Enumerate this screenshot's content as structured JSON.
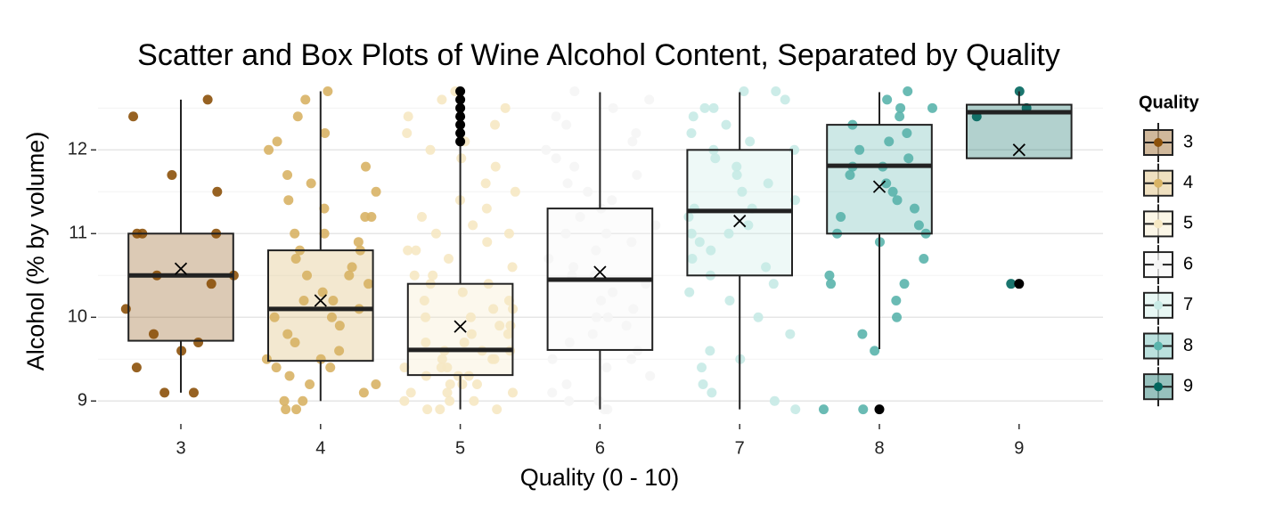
{
  "chart_data": {
    "type": "box",
    "title": "Scatter and Box Plots of Wine Alcohol Content, Separated by Quality",
    "x_title": "Quality (0 - 10)",
    "y_title": "Alcohol (% by volume)",
    "legend_title": "Quality",
    "categories": [
      "3",
      "4",
      "5",
      "6",
      "7",
      "8",
      "9"
    ],
    "ylim": [
      8.79,
      12.78
    ],
    "yticks": [
      9,
      10,
      11,
      12
    ],
    "minor_yticks": [
      9.5,
      10.5,
      11.5,
      12.5
    ],
    "grid": true,
    "legend": "right",
    "boxes": [
      {
        "color": "#8c510a",
        "q1": 9.72,
        "median": 10.5,
        "q3": 11.0,
        "whisker_low": 9.1,
        "whisker_high": 12.6,
        "mean": 10.58,
        "outliers": [],
        "points": [
          12.6,
          12.4,
          11.7,
          11.5,
          11.0,
          11.0,
          11.0,
          10.5,
          10.5,
          10.4,
          10.1,
          9.8,
          9.7,
          9.6,
          9.4,
          9.1,
          9.1
        ]
      },
      {
        "color": "#d8b365",
        "q1": 9.48,
        "median": 10.1,
        "q3": 10.8,
        "whisker_low": 9.0,
        "whisker_high": 12.7,
        "mean": 10.2,
        "outliers": [],
        "points": [
          12.7,
          12.6,
          12.4,
          12.2,
          12.1,
          12.0,
          11.8,
          11.7,
          11.6,
          11.5,
          11.4,
          11.3,
          11.2,
          11.2,
          11.0,
          11.0,
          10.9,
          10.8,
          10.8,
          10.7,
          10.6,
          10.5,
          10.5,
          10.4,
          10.3,
          10.2,
          10.2,
          10.1,
          10.0,
          10.0,
          9.9,
          9.8,
          9.7,
          9.6,
          9.5,
          9.5,
          9.4,
          9.4,
          9.3,
          9.2,
          9.2,
          9.1,
          9.0,
          9.0,
          8.9,
          8.9
        ]
      },
      {
        "color": "#f6e8c3",
        "q1": 9.31,
        "median": 9.61,
        "q3": 10.4,
        "whisker_low": 8.9,
        "whisker_high": 12.09,
        "mean": 9.89,
        "outliers": [
          12.7,
          12.6,
          12.5,
          12.4,
          12.3,
          12.2,
          12.1
        ],
        "points": [
          12.7,
          12.6,
          12.5,
          12.4,
          12.3,
          12.2,
          12.1,
          12.0,
          11.9,
          11.8,
          11.6,
          11.5,
          11.4,
          11.3,
          11.2,
          11.1,
          11.0,
          11.0,
          10.9,
          10.8,
          10.8,
          10.7,
          10.6,
          10.5,
          10.5,
          10.4,
          10.4,
          10.3,
          10.2,
          10.2,
          10.1,
          10.1,
          10.0,
          10.0,
          9.9,
          9.9,
          9.8,
          9.8,
          9.7,
          9.7,
          9.6,
          9.6,
          9.6,
          9.5,
          9.5,
          9.5,
          9.4,
          9.4,
          9.4,
          9.3,
          9.3,
          9.3,
          9.2,
          9.2,
          9.2,
          9.1,
          9.1,
          9.1,
          9.0,
          9.0,
          9.0,
          8.9,
          8.9,
          8.9
        ]
      },
      {
        "color": "#f5f5f5",
        "q1": 9.61,
        "median": 10.45,
        "q3": 11.3,
        "whisker_low": 8.9,
        "whisker_high": 12.69,
        "mean": 10.54,
        "outliers": [],
        "points": [
          12.7,
          12.6,
          12.5,
          12.4,
          12.3,
          12.2,
          12.1,
          12.0,
          11.9,
          11.8,
          11.7,
          11.6,
          11.5,
          11.4,
          11.3,
          11.2,
          11.1,
          11.0,
          11.0,
          10.9,
          10.8,
          10.7,
          10.6,
          10.5,
          10.5,
          10.4,
          10.3,
          10.2,
          10.1,
          10.0,
          10.0,
          9.9,
          9.8,
          9.7,
          9.6,
          9.5,
          9.5,
          9.4,
          9.3,
          9.2,
          9.1,
          9.0,
          9.0,
          8.9,
          8.9
        ]
      },
      {
        "color": "#c7eae5",
        "q1": 10.5,
        "median": 11.27,
        "q3": 12.0,
        "whisker_low": 8.9,
        "whisker_high": 12.69,
        "mean": 11.15,
        "outliers": [],
        "points": [
          12.7,
          12.7,
          12.6,
          12.5,
          12.5,
          12.4,
          12.3,
          12.2,
          12.1,
          12.0,
          12.0,
          11.9,
          11.8,
          11.7,
          11.6,
          11.5,
          11.4,
          11.3,
          11.3,
          11.2,
          11.1,
          11.0,
          11.0,
          10.9,
          10.8,
          10.7,
          10.6,
          10.5,
          10.4,
          10.3,
          10.2,
          10.0,
          9.8,
          9.6,
          9.5,
          9.4,
          9.2,
          9.1,
          9.0,
          8.9
        ]
      },
      {
        "color": "#5ab4ac",
        "q1": 11.0,
        "median": 11.81,
        "q3": 12.3,
        "whisker_low": 9.62,
        "whisker_high": 12.69,
        "mean": 11.56,
        "outliers": [
          8.9
        ],
        "points": [
          12.7,
          12.6,
          12.5,
          12.5,
          12.4,
          12.3,
          12.2,
          12.1,
          12.0,
          11.9,
          11.8,
          11.8,
          11.7,
          11.6,
          11.5,
          11.4,
          11.3,
          11.2,
          11.1,
          11.0,
          11.0,
          10.9,
          10.7,
          10.5,
          10.4,
          10.4,
          10.2,
          10.0,
          9.8,
          9.6,
          8.9,
          8.9
        ]
      },
      {
        "color": "#01665e",
        "q1": 11.9,
        "median": 12.45,
        "q3": 12.54,
        "whisker_low": 11.9,
        "whisker_high": 12.7,
        "mean": 12.0,
        "outliers": [
          10.4
        ],
        "points": [
          12.7,
          12.5,
          12.4,
          10.4
        ]
      }
    ]
  }
}
